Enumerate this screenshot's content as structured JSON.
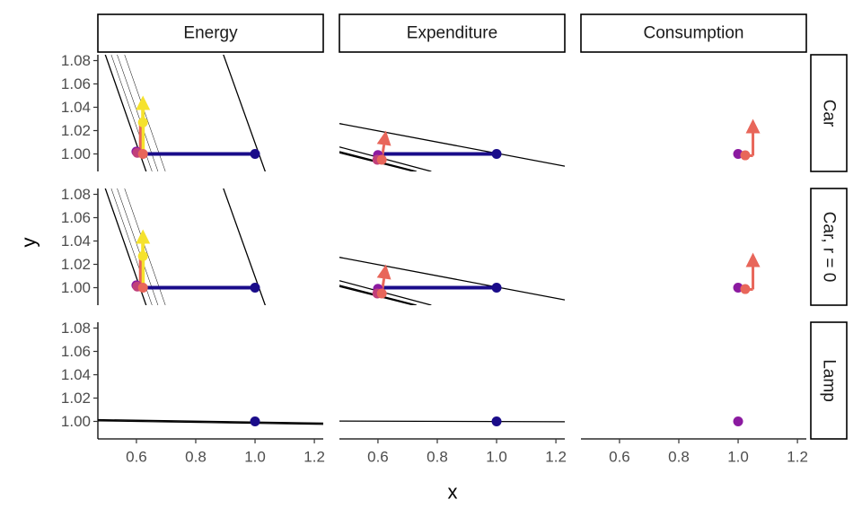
{
  "chart_data": {
    "type": "scatter",
    "xlabel": "x",
    "ylabel": "y",
    "xlim": [
      0.47,
      1.23
    ],
    "ylim": [
      0.985,
      1.085
    ],
    "x_ticks": [
      0.6,
      0.8,
      1.0,
      1.2
    ],
    "y_ticks": [
      1.0,
      1.02,
      1.04,
      1.06,
      1.08
    ],
    "x_tick_labels": [
      "0.6",
      "0.8",
      "1.0",
      "1.2"
    ],
    "y_tick_labels": [
      "1.00",
      "1.02",
      "1.04",
      "1.06",
      "1.08"
    ],
    "columns": [
      "Energy",
      "Expenditure",
      "Consumption"
    ],
    "rows": [
      "Car",
      "Car, r = 0",
      "Lamp"
    ],
    "colors": {
      "navy": "#1a0c8a",
      "purple": "#8b1aa0",
      "magenta": "#c0407a",
      "salmon": "#e8665a",
      "orange": "#f39a40",
      "yellow": "#f5e22e",
      "line": "#000000"
    },
    "panels": [
      {
        "row": 0,
        "col": 0,
        "lines": [
          {
            "x1": 0.48,
            "y1": 1.096,
            "x2": 0.634,
            "y2": 0.984,
            "w": 1.3
          },
          {
            "x1": 0.5,
            "y1": 1.096,
            "x2": 0.654,
            "y2": 0.984,
            "w": 0.5
          },
          {
            "x1": 0.52,
            "y1": 1.096,
            "x2": 0.674,
            "y2": 0.984,
            "w": 0.5
          },
          {
            "x1": 0.545,
            "y1": 1.096,
            "x2": 0.699,
            "y2": 0.984,
            "w": 0.5
          },
          {
            "x1": 0.878,
            "y1": 1.096,
            "x2": 1.0356,
            "y2": 0.984,
            "w": 1.3
          }
        ],
        "arrows": [
          {
            "x1": 0.6,
            "y1": 1.0,
            "x2": 1.0,
            "y2": 1.0,
            "color": "navy",
            "head": false,
            "w": 4
          },
          {
            "x1": 0.622,
            "y1": 1.0,
            "x2": 0.622,
            "y2": 1.05,
            "color": "yellow",
            "head": true,
            "w": 4
          },
          {
            "x1": 0.608,
            "y1": 1.0,
            "x2": 0.625,
            "y2": 1.0,
            "color": "salmon",
            "head": false,
            "w": 3
          },
          {
            "x1": 0.613,
            "y1": 1.0,
            "x2": 0.613,
            "y2": 1.025,
            "color": "salmon",
            "head": false,
            "w": 3
          }
        ],
        "points": [
          {
            "x": 1.0,
            "y": 1.0,
            "color": "navy"
          },
          {
            "x": 0.6,
            "y": 1.002,
            "color": "purple"
          },
          {
            "x": 0.603,
            "y": 1.001,
            "color": "magenta"
          },
          {
            "x": 0.622,
            "y": 1.0,
            "color": "salmon"
          },
          {
            "x": 0.622,
            "y": 1.027,
            "color": "yellow"
          }
        ]
      },
      {
        "row": 0,
        "col": 1,
        "lines": [
          {
            "x1": 0.47,
            "y1": 1.026,
            "x2": 1.23,
            "y2": 0.9895,
            "w": 1.3
          },
          {
            "x1": 0.47,
            "y1": 1.006,
            "x2": 0.78,
            "y2": 0.985,
            "w": 1.3
          },
          {
            "x1": 0.47,
            "y1": 1.002,
            "x2": 0.73,
            "y2": 0.985,
            "w": 1.3
          },
          {
            "x1": 0.47,
            "y1": 1.001,
            "x2": 0.72,
            "y2": 0.985,
            "w": 1.3
          }
        ],
        "arrows": [
          {
            "x1": 0.6,
            "y1": 1.0,
            "x2": 1.0,
            "y2": 1.0,
            "color": "navy",
            "head": false,
            "w": 4
          },
          {
            "x1": 0.613,
            "y1": 0.995,
            "x2": 0.627,
            "y2": 1.02,
            "color": "salmon",
            "head": true,
            "w": 3
          }
        ],
        "points": [
          {
            "x": 1.0,
            "y": 1.0,
            "color": "navy"
          },
          {
            "x": 0.6,
            "y": 0.999,
            "color": "purple"
          },
          {
            "x": 0.598,
            "y": 0.995,
            "color": "magenta"
          },
          {
            "x": 0.613,
            "y": 0.995,
            "color": "salmon"
          }
        ]
      },
      {
        "row": 0,
        "col": 2,
        "lines": [],
        "arrows": [
          {
            "x1": 1.025,
            "y1": 0.9985,
            "x2": 1.05,
            "y2": 0.9985,
            "color": "salmon",
            "head": false,
            "w": 3
          },
          {
            "x1": 1.05,
            "y1": 0.9985,
            "x2": 1.05,
            "y2": 1.03,
            "color": "salmon",
            "head": true,
            "w": 3
          }
        ],
        "points": [
          {
            "x": 1.0,
            "y": 1.0,
            "color": "purple"
          },
          {
            "x": 1.024,
            "y": 0.9988,
            "color": "salmon"
          }
        ]
      },
      {
        "row": 1,
        "col": 0,
        "lines": [
          {
            "x1": 0.48,
            "y1": 1.096,
            "x2": 0.634,
            "y2": 0.984,
            "w": 1.3
          },
          {
            "x1": 0.5,
            "y1": 1.096,
            "x2": 0.654,
            "y2": 0.984,
            "w": 0.5
          },
          {
            "x1": 0.52,
            "y1": 1.096,
            "x2": 0.674,
            "y2": 0.984,
            "w": 0.5
          },
          {
            "x1": 0.545,
            "y1": 1.096,
            "x2": 0.699,
            "y2": 0.984,
            "w": 0.5
          },
          {
            "x1": 0.878,
            "y1": 1.096,
            "x2": 1.0356,
            "y2": 0.984,
            "w": 1.3
          }
        ],
        "arrows": [
          {
            "x1": 0.6,
            "y1": 1.0,
            "x2": 1.0,
            "y2": 1.0,
            "color": "navy",
            "head": false,
            "w": 4
          },
          {
            "x1": 0.622,
            "y1": 1.0,
            "x2": 0.622,
            "y2": 1.05,
            "color": "yellow",
            "head": true,
            "w": 4
          },
          {
            "x1": 0.608,
            "y1": 1.0,
            "x2": 0.625,
            "y2": 1.0,
            "color": "salmon",
            "head": false,
            "w": 3
          },
          {
            "x1": 0.613,
            "y1": 1.0,
            "x2": 0.613,
            "y2": 1.025,
            "color": "salmon",
            "head": false,
            "w": 3
          }
        ],
        "points": [
          {
            "x": 1.0,
            "y": 1.0,
            "color": "navy"
          },
          {
            "x": 0.6,
            "y": 1.002,
            "color": "purple"
          },
          {
            "x": 0.603,
            "y": 1.001,
            "color": "magenta"
          },
          {
            "x": 0.622,
            "y": 1.0,
            "color": "salmon"
          },
          {
            "x": 0.622,
            "y": 1.027,
            "color": "yellow"
          }
        ]
      },
      {
        "row": 1,
        "col": 1,
        "lines": [
          {
            "x1": 0.47,
            "y1": 1.026,
            "x2": 1.23,
            "y2": 0.9895,
            "w": 1.3
          },
          {
            "x1": 0.47,
            "y1": 1.006,
            "x2": 0.78,
            "y2": 0.985,
            "w": 1.3
          },
          {
            "x1": 0.47,
            "y1": 1.002,
            "x2": 0.73,
            "y2": 0.985,
            "w": 1.3
          },
          {
            "x1": 0.47,
            "y1": 1.001,
            "x2": 0.72,
            "y2": 0.985,
            "w": 1.3
          }
        ],
        "arrows": [
          {
            "x1": 0.6,
            "y1": 1.0,
            "x2": 1.0,
            "y2": 1.0,
            "color": "navy",
            "head": false,
            "w": 4
          },
          {
            "x1": 0.613,
            "y1": 0.995,
            "x2": 0.627,
            "y2": 1.02,
            "color": "salmon",
            "head": true,
            "w": 3
          }
        ],
        "points": [
          {
            "x": 1.0,
            "y": 1.0,
            "color": "navy"
          },
          {
            "x": 0.6,
            "y": 0.999,
            "color": "purple"
          },
          {
            "x": 0.598,
            "y": 0.995,
            "color": "magenta"
          },
          {
            "x": 0.613,
            "y": 0.995,
            "color": "salmon"
          }
        ]
      },
      {
        "row": 1,
        "col": 2,
        "lines": [],
        "arrows": [
          {
            "x1": 1.025,
            "y1": 0.9985,
            "x2": 1.05,
            "y2": 0.9985,
            "color": "salmon",
            "head": false,
            "w": 3
          },
          {
            "x1": 1.05,
            "y1": 0.9985,
            "x2": 1.05,
            "y2": 1.03,
            "color": "salmon",
            "head": true,
            "w": 3
          }
        ],
        "points": [
          {
            "x": 1.0,
            "y": 1.0,
            "color": "purple"
          },
          {
            "x": 1.024,
            "y": 0.9988,
            "color": "salmon"
          }
        ]
      },
      {
        "row": 2,
        "col": 0,
        "lines": [
          {
            "x1": 0.47,
            "y1": 1.0015,
            "x2": 1.23,
            "y2": 0.9985,
            "w": 1.3
          },
          {
            "x1": 0.47,
            "y1": 1.0005,
            "x2": 1.23,
            "y2": 0.9975,
            "w": 1.3
          },
          {
            "x1": 0.47,
            "y1": 1.0012,
            "x2": 1.23,
            "y2": 0.9982,
            "w": 0.5
          }
        ],
        "arrows": [],
        "points": [
          {
            "x": 1.0,
            "y": 1.0,
            "color": "navy"
          }
        ]
      },
      {
        "row": 2,
        "col": 1,
        "lines": [
          {
            "x1": 0.47,
            "y1": 1.0003,
            "x2": 1.23,
            "y2": 0.9997,
            "w": 1.3
          }
        ],
        "arrows": [],
        "points": [
          {
            "x": 1.0,
            "y": 1.0,
            "color": "navy"
          }
        ]
      },
      {
        "row": 2,
        "col": 2,
        "lines": [],
        "arrows": [],
        "points": [
          {
            "x": 1.0,
            "y": 1.0,
            "color": "purple"
          }
        ]
      }
    ]
  }
}
